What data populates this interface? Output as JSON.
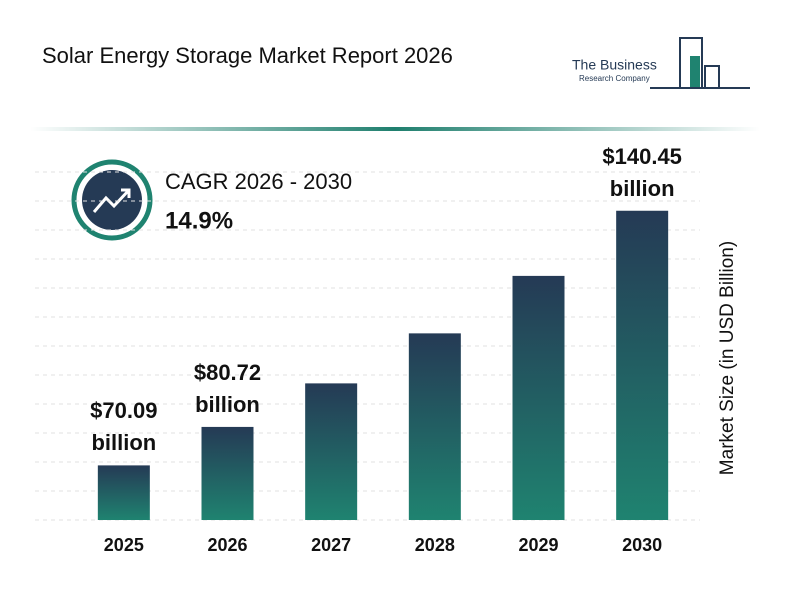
{
  "chart_data": {
    "type": "bar",
    "title": "Solar Energy Storage Market Report 2026",
    "logo": [
      "The Business",
      "Research Company"
    ],
    "cagr_label": "CAGR 2026 - 2030",
    "cagr_value": "14.9%",
    "y_label": "Market Size (in USD Billion)",
    "categories": [
      "2025",
      "2026",
      "2027",
      "2028",
      "2029",
      "2030"
    ],
    "values": [
      70.09,
      80.72,
      92.75,
      106.57,
      122.45,
      140.45
    ],
    "value_labels": [
      "$70.09 billion",
      "$80.72 billion",
      null,
      null,
      null,
      "$140.45 billion"
    ],
    "color_top": "#253a55",
    "color_bottom": "#1f8370",
    "ylim": [
      55,
      160
    ],
    "grid": true
  }
}
